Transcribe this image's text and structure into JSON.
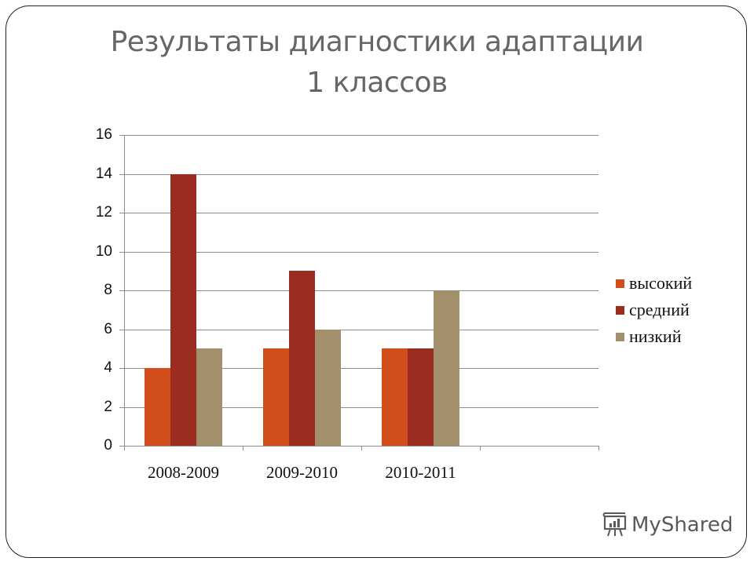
{
  "slide": {
    "title_line1": "Результаты диагностики адаптации",
    "title_line2": "1  классов"
  },
  "watermark": {
    "text": "MyShared",
    "icon": "presentation-board-icon"
  },
  "colors": {
    "высокий": "#d24d1c",
    "средний": "#9a2d1f",
    "низкий": "#a38f6c",
    "grid": "#8c8c8c",
    "title": "#666666"
  },
  "chart_data": {
    "type": "bar",
    "title": "Результаты диагностики адаптации 1 классов",
    "xlabel": "",
    "ylabel": "",
    "categories": [
      "2008-2009",
      "2009-2010",
      "2010-2011",
      ""
    ],
    "series": [
      {
        "name": "высокий",
        "color": "#d24d1c",
        "values": [
          4,
          5,
          5,
          null
        ]
      },
      {
        "name": "средний",
        "color": "#9a2d1f",
        "values": [
          14,
          9,
          5,
          null
        ]
      },
      {
        "name": "низкий",
        "color": "#a38f6c",
        "values": [
          5,
          6,
          8,
          null
        ]
      }
    ],
    "ylim": [
      0,
      16
    ],
    "yticks": [
      0,
      2,
      4,
      6,
      8,
      10,
      12,
      14,
      16
    ],
    "grid": true,
    "legend_position": "right"
  }
}
